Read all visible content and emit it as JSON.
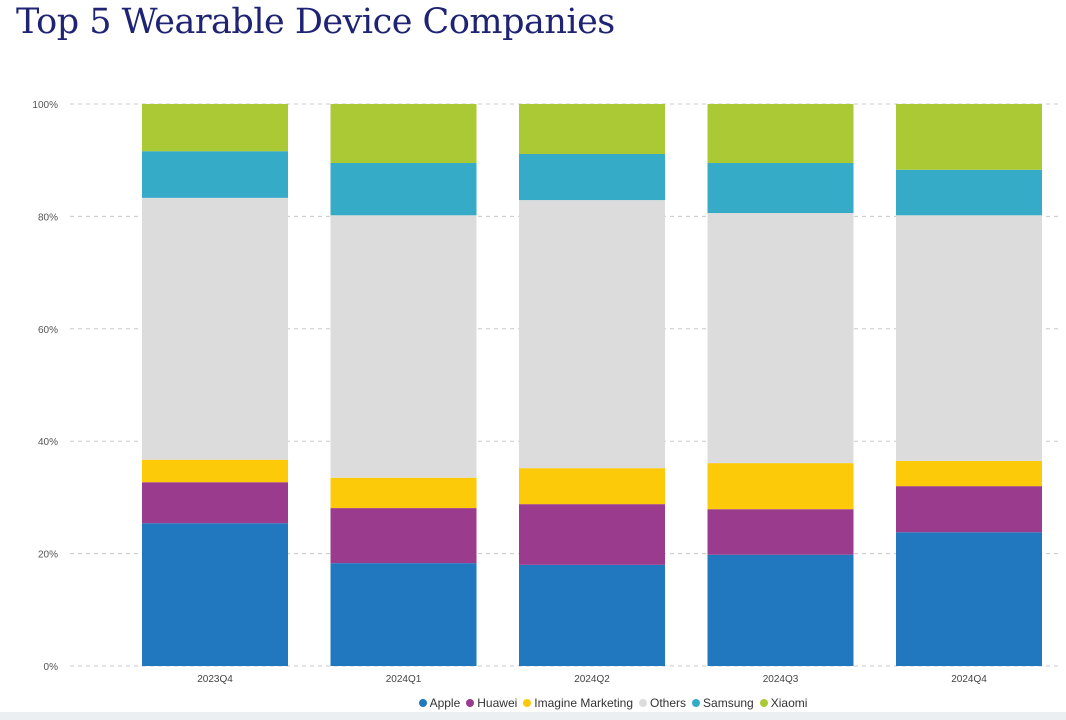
{
  "title": "Top 5 Wearable Device Companies",
  "chart_data": {
    "type": "bar",
    "stacked": "100%",
    "categories": [
      "2023Q4",
      "2024Q1",
      "2024Q2",
      "2024Q3",
      "2024Q4"
    ],
    "series": [
      {
        "name": "Apple",
        "color": "#2178be",
        "values": [
          25.4,
          18.3,
          18.0,
          19.8,
          23.8
        ]
      },
      {
        "name": "Huawei",
        "color": "#9b3b8e",
        "values": [
          7.3,
          9.8,
          10.8,
          8.1,
          8.2
        ]
      },
      {
        "name": "Imagine Marketing",
        "color": "#fdca0a",
        "values": [
          4.0,
          5.4,
          6.4,
          8.2,
          4.5
        ]
      },
      {
        "name": "Others",
        "color": "#dcdcdc",
        "values": [
          46.6,
          46.7,
          47.7,
          44.5,
          43.7
        ]
      },
      {
        "name": "Samsung",
        "color": "#36abc8",
        "values": [
          8.3,
          9.3,
          8.2,
          8.9,
          8.1
        ]
      },
      {
        "name": "Xiaomi",
        "color": "#abc935",
        "values": [
          8.4,
          10.5,
          8.9,
          10.5,
          11.7
        ]
      }
    ],
    "yticks": [
      "0%",
      "20%",
      "40%",
      "60%",
      "80%",
      "100%"
    ],
    "ylim": [
      0,
      100
    ],
    "grid": true,
    "legend": "bottom"
  }
}
